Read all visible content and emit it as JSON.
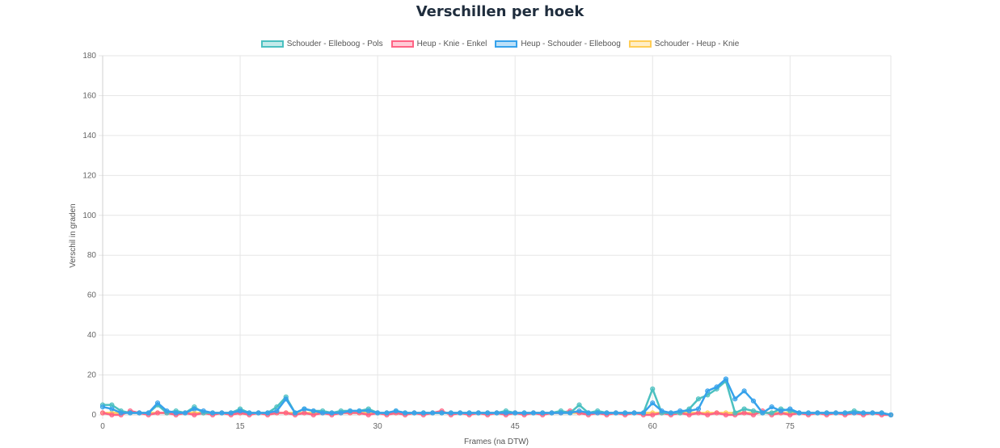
{
  "chart_data": {
    "type": "line",
    "title": "Verschillen per hoek",
    "xlabel": "Frames (na DTW)",
    "ylabel": "Verschil in graden",
    "ylim": [
      0,
      180
    ],
    "xlim": [
      0,
      86
    ],
    "x_ticks": [
      0,
      15,
      30,
      45,
      60,
      75
    ],
    "y_ticks": [
      0,
      20,
      40,
      60,
      80,
      100,
      120,
      140,
      160,
      180
    ],
    "grid": true,
    "legend_position": "top",
    "series": [
      {
        "name": "Schouder - Elleboog - Pols",
        "color": "#4bc0c0",
        "values": [
          5,
          5,
          2,
          1,
          1,
          1,
          5,
          1,
          2,
          1,
          4,
          1,
          1,
          1,
          1,
          3,
          1,
          1,
          1,
          4,
          9,
          1,
          3,
          2,
          2,
          1,
          2,
          2,
          2,
          3,
          1,
          1,
          2,
          1,
          1,
          1,
          1,
          1,
          1,
          1,
          1,
          1,
          1,
          1,
          2,
          1,
          1,
          1,
          1,
          1,
          2,
          1,
          5,
          1,
          2,
          1,
          1,
          1,
          1,
          1,
          13,
          1,
          1,
          1,
          3,
          8,
          10,
          13,
          17,
          1,
          3,
          2,
          1,
          1,
          3,
          2,
          1,
          1,
          1,
          1,
          1,
          1,
          2,
          1,
          1,
          1,
          0
        ]
      },
      {
        "name": "Heup - Knie - Enkel",
        "color": "#ff6384",
        "values": [
          1,
          0,
          0,
          2,
          1,
          0,
          1,
          1,
          0,
          1,
          0,
          1,
          0,
          1,
          0,
          1,
          0,
          1,
          0,
          1,
          1,
          0,
          1,
          0,
          1,
          0,
          1,
          1,
          1,
          0,
          1,
          0,
          1,
          0,
          1,
          0,
          1,
          2,
          0,
          1,
          0,
          1,
          0,
          1,
          0,
          1,
          0,
          1,
          0,
          1,
          1,
          2,
          1,
          0,
          1,
          0,
          1,
          0,
          1,
          0,
          0,
          1,
          0,
          1,
          0,
          1,
          0,
          1,
          0,
          0,
          1,
          0,
          2,
          0,
          1,
          0,
          1,
          0,
          1,
          0,
          1,
          0,
          1,
          0,
          1,
          0,
          0
        ]
      },
      {
        "name": "Heup - Schouder - Elleboog",
        "color": "#36a2eb",
        "values": [
          4,
          3,
          1,
          1,
          1,
          1,
          6,
          2,
          1,
          1,
          3,
          2,
          1,
          1,
          1,
          2,
          1,
          1,
          1,
          2,
          8,
          1,
          3,
          2,
          1,
          1,
          1,
          2,
          2,
          2,
          1,
          1,
          2,
          1,
          1,
          1,
          1,
          1,
          1,
          1,
          1,
          1,
          1,
          1,
          1,
          1,
          1,
          1,
          1,
          1,
          1,
          1,
          2,
          1,
          1,
          1,
          1,
          1,
          1,
          1,
          6,
          2,
          1,
          2,
          2,
          3,
          12,
          14,
          18,
          8,
          12,
          7,
          1,
          4,
          2,
          3,
          1,
          1,
          1,
          1,
          1,
          1,
          1,
          1,
          1,
          1,
          0
        ]
      },
      {
        "name": "Schouder - Heup - Knie",
        "color": "#ffcd56",
        "values": [
          1,
          1,
          1,
          1,
          1,
          1,
          1,
          1,
          1,
          1,
          1,
          1,
          1,
          1,
          1,
          1,
          1,
          1,
          1,
          1,
          1,
          1,
          1,
          1,
          1,
          1,
          1,
          1,
          1,
          1,
          1,
          1,
          1,
          1,
          1,
          1,
          1,
          1,
          1,
          1,
          1,
          1,
          1,
          1,
          1,
          1,
          1,
          1,
          1,
          1,
          1,
          1,
          1,
          1,
          1,
          1,
          1,
          1,
          1,
          1,
          1,
          1,
          1,
          1,
          1,
          1,
          1,
          1,
          1,
          1,
          1,
          1,
          1,
          1,
          1,
          1,
          1,
          1,
          1,
          1,
          1,
          1,
          1,
          1,
          1,
          1,
          0
        ]
      }
    ]
  }
}
